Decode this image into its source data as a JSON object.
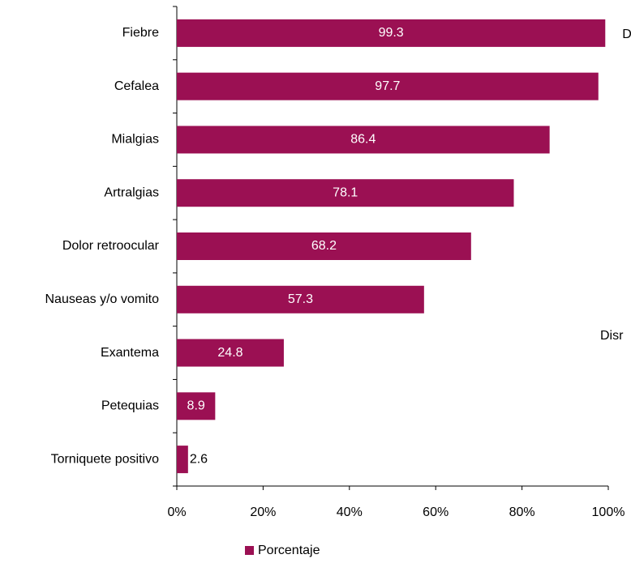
{
  "chart_data": {
    "type": "bar",
    "orientation": "horizontal",
    "categories": [
      "Fiebre",
      "Cefalea",
      "Mialgias",
      "Artralgias",
      "Dolor retroocular",
      "Nauseas y/o vomito",
      "Exantema",
      "Petequias",
      "Torniquete positivo"
    ],
    "series": [
      {
        "name": "Porcentaje",
        "color": "#9b1053",
        "values": [
          99.3,
          97.7,
          86.4,
          78.1,
          68.2,
          57.3,
          24.8,
          8.9,
          2.6
        ]
      }
    ],
    "xlim": [
      0,
      100
    ],
    "xticks": [
      {
        "value": 0,
        "label": "0%"
      },
      {
        "value": 20,
        "label": "20%"
      },
      {
        "value": 40,
        "label": "40%"
      },
      {
        "value": 60,
        "label": "60%"
      },
      {
        "value": 80,
        "label": "80%"
      },
      {
        "value": 100,
        "label": "100%"
      }
    ],
    "legend": "bottom",
    "annotations": [
      "D",
      "Disr"
    ]
  }
}
